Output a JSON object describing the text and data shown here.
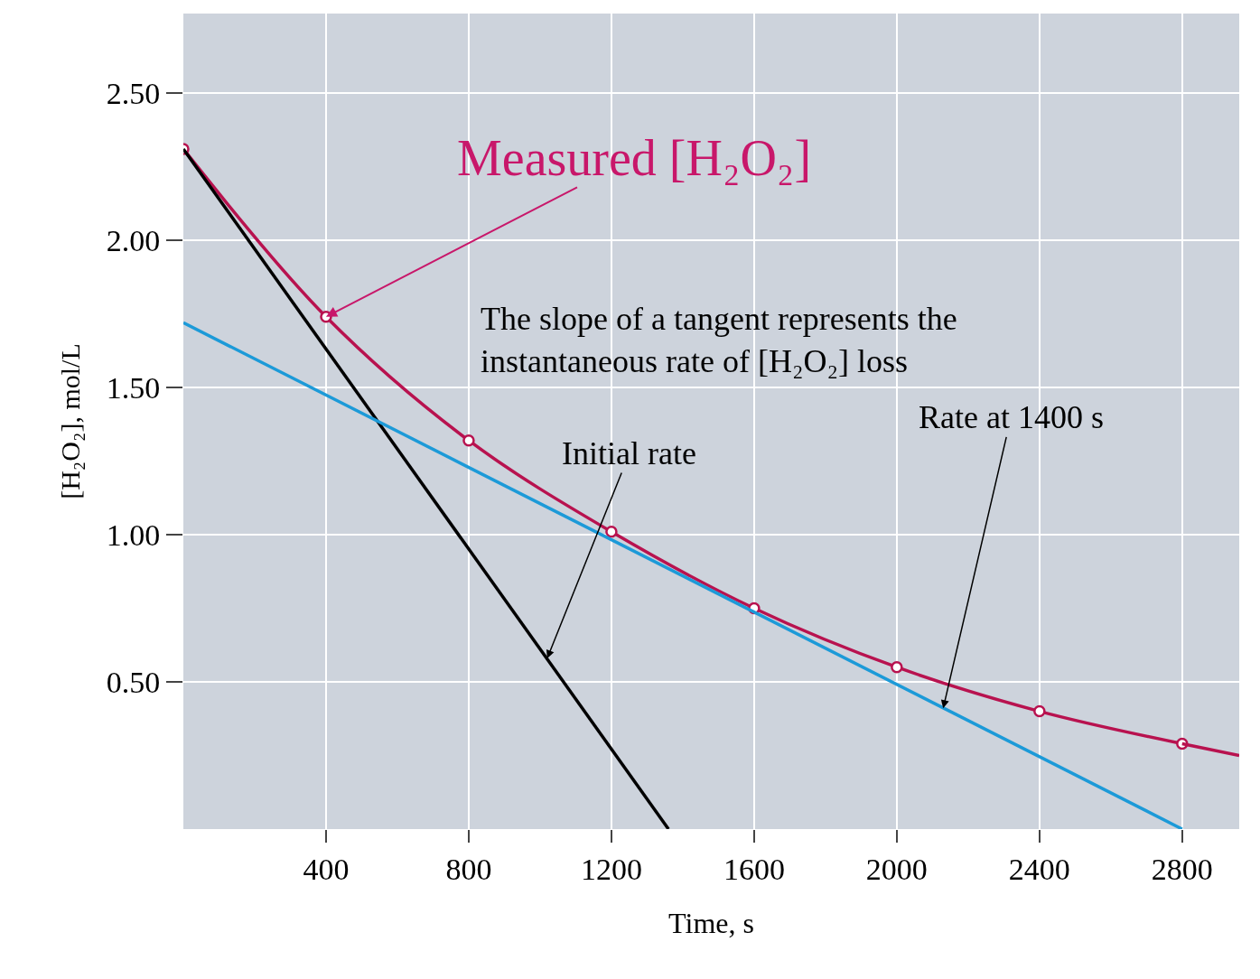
{
  "chart_data": {
    "type": "line",
    "xlabel": "Time, s",
    "ylabel": "[H₂O₂], mol/L",
    "series": [
      {
        "color": "#b8124f",
        "x": [
          0,
          400,
          800,
          1200,
          1600,
          2000,
          2400,
          2800
        ],
        "values": [
          2.31,
          1.74,
          1.32,
          1.01,
          0.75,
          0.55,
          0.4,
          0.29
        ],
        "marker": "circle"
      },
      {
        "color": "#b8124f",
        "x": [
          2800,
          2960
        ],
        "values": [
          0.29,
          0.25
        ],
        "marker": "none"
      },
      {
        "color": "#000000",
        "x": [
          0,
          1360
        ],
        "values": [
          2.31,
          0
        ],
        "marker": "none"
      },
      {
        "color": "#1c9ad8",
        "x": [
          0,
          2800
        ],
        "values": [
          1.72,
          0
        ],
        "marker": "none"
      }
    ],
    "annotations": [
      {
        "text": "Measured [H₂O₂]",
        "x": 400,
        "y": 1.74
      },
      "The slope of a tangent represents the instantaneous rate of [H₂O₂] loss",
      {
        "text": "Initial rate",
        "x": 1020,
        "y": 0.58
      },
      {
        "text": "Rate at 1400 s",
        "x": 2130,
        "y": 0.41
      }
    ],
    "xlim": [
      0,
      2960
    ],
    "xticks": [
      400,
      800,
      1200,
      1600,
      2000,
      2400,
      2800
    ],
    "ylim": [
      0,
      2.77
    ],
    "yticks": [
      {
        "value": 0.5,
        "label": "0.50"
      },
      {
        "value": 1,
        "label": "1.00"
      },
      {
        "value": 1.5,
        "label": "1.50"
      },
      {
        "value": 2,
        "label": "2.00"
      },
      {
        "value": 2.5,
        "label": "2.50"
      }
    ],
    "grid": true
  }
}
